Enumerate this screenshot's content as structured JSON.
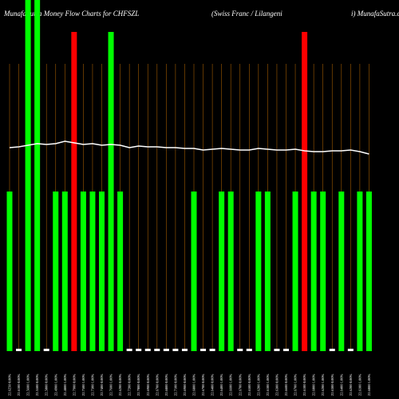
{
  "chart_data": {
    "type": "bar",
    "title": "MunafaSutra  Money Flow  Charts for CHFSZL",
    "subtitle": "(Swiss Franc / Lilangeni",
    "source": "i) MunafaSutra.com",
    "categories": [
      "22.6250 0.00%",
      "22.6100 0.00%",
      "22.5600 1.00%",
      "22.5500 0.00%",
      "22.5000 0.00%",
      "22.4900 1.00%",
      "22.4800 1.00%",
      "22.7900 0.00%",
      "22.7500 1.00%",
      "22.7300 1.00%",
      "22.7400 0.00%",
      "22.7600 1.00%",
      "22.6200 0.00%",
      "22.7200 0.00%",
      "22.7000 0.00%",
      "22.6900 0.00%",
      "22.6700 0.00%",
      "22.6800 0.00%",
      "22.7100 0.00%",
      "22.6900 0.00%",
      "22.6800 1.00%",
      "22.6700 0.00%",
      "22.6400 0.00%",
      "22.6400 1.00%",
      "22.6600 1.00%",
      "22.6700 0.00%",
      "22.6500 0.00%",
      "22.6200 1.00%",
      "22.6100 1.00%",
      "22.6300 0.00%",
      "22.6600 0.00%",
      "22.6700 1.00%",
      "22.6100 0.00%",
      "22.6000 1.00%",
      "22.6200 1.00%",
      "22.6300 0.00%",
      "22.6400 1.00%",
      "22.6200 0.00%",
      "22.6100 1.00%",
      "22.6000 1.00%"
    ],
    "values": [
      200,
      3,
      440,
      440,
      3,
      200,
      200,
      400,
      200,
      200,
      200,
      400,
      200,
      3,
      3,
      3,
      3,
      3,
      3,
      3,
      200,
      3,
      3,
      200,
      200,
      3,
      3,
      200,
      200,
      3,
      3,
      200,
      400,
      200,
      200,
      3,
      200,
      3,
      200,
      200
    ],
    "colors": [
      "#00ff00",
      "#ffffff",
      "#00ff00",
      "#00ff00",
      "#ffffff",
      "#00ff00",
      "#00ff00",
      "#ff0000",
      "#00ff00",
      "#00ff00",
      "#00ff00",
      "#00ff00",
      "#00ff00",
      "#ffffff",
      "#ffffff",
      "#ffffff",
      "#ffffff",
      "#ffffff",
      "#ffffff",
      "#ffffff",
      "#00ff00",
      "#ffffff",
      "#ffffff",
      "#00ff00",
      "#00ff00",
      "#ffffff",
      "#ffffff",
      "#00ff00",
      "#00ff00",
      "#ffffff",
      "#ffffff",
      "#00ff00",
      "#ff0000",
      "#00ff00",
      "#00ff00",
      "#ffffff",
      "#00ff00",
      "#ffffff",
      "#00ff00",
      "#00ff00"
    ],
    "line": {
      "color": "#ffffff",
      "values": [
        255,
        256,
        258,
        260,
        259,
        260,
        263,
        261,
        259,
        260,
        258,
        259,
        258,
        255,
        257,
        256,
        256,
        255,
        255,
        254,
        254,
        252,
        253,
        254,
        253,
        252,
        252,
        254,
        253,
        252,
        252,
        253,
        251,
        250,
        250,
        251,
        251,
        252,
        250,
        247
      ]
    },
    "ylim": [
      0,
      440
    ]
  }
}
